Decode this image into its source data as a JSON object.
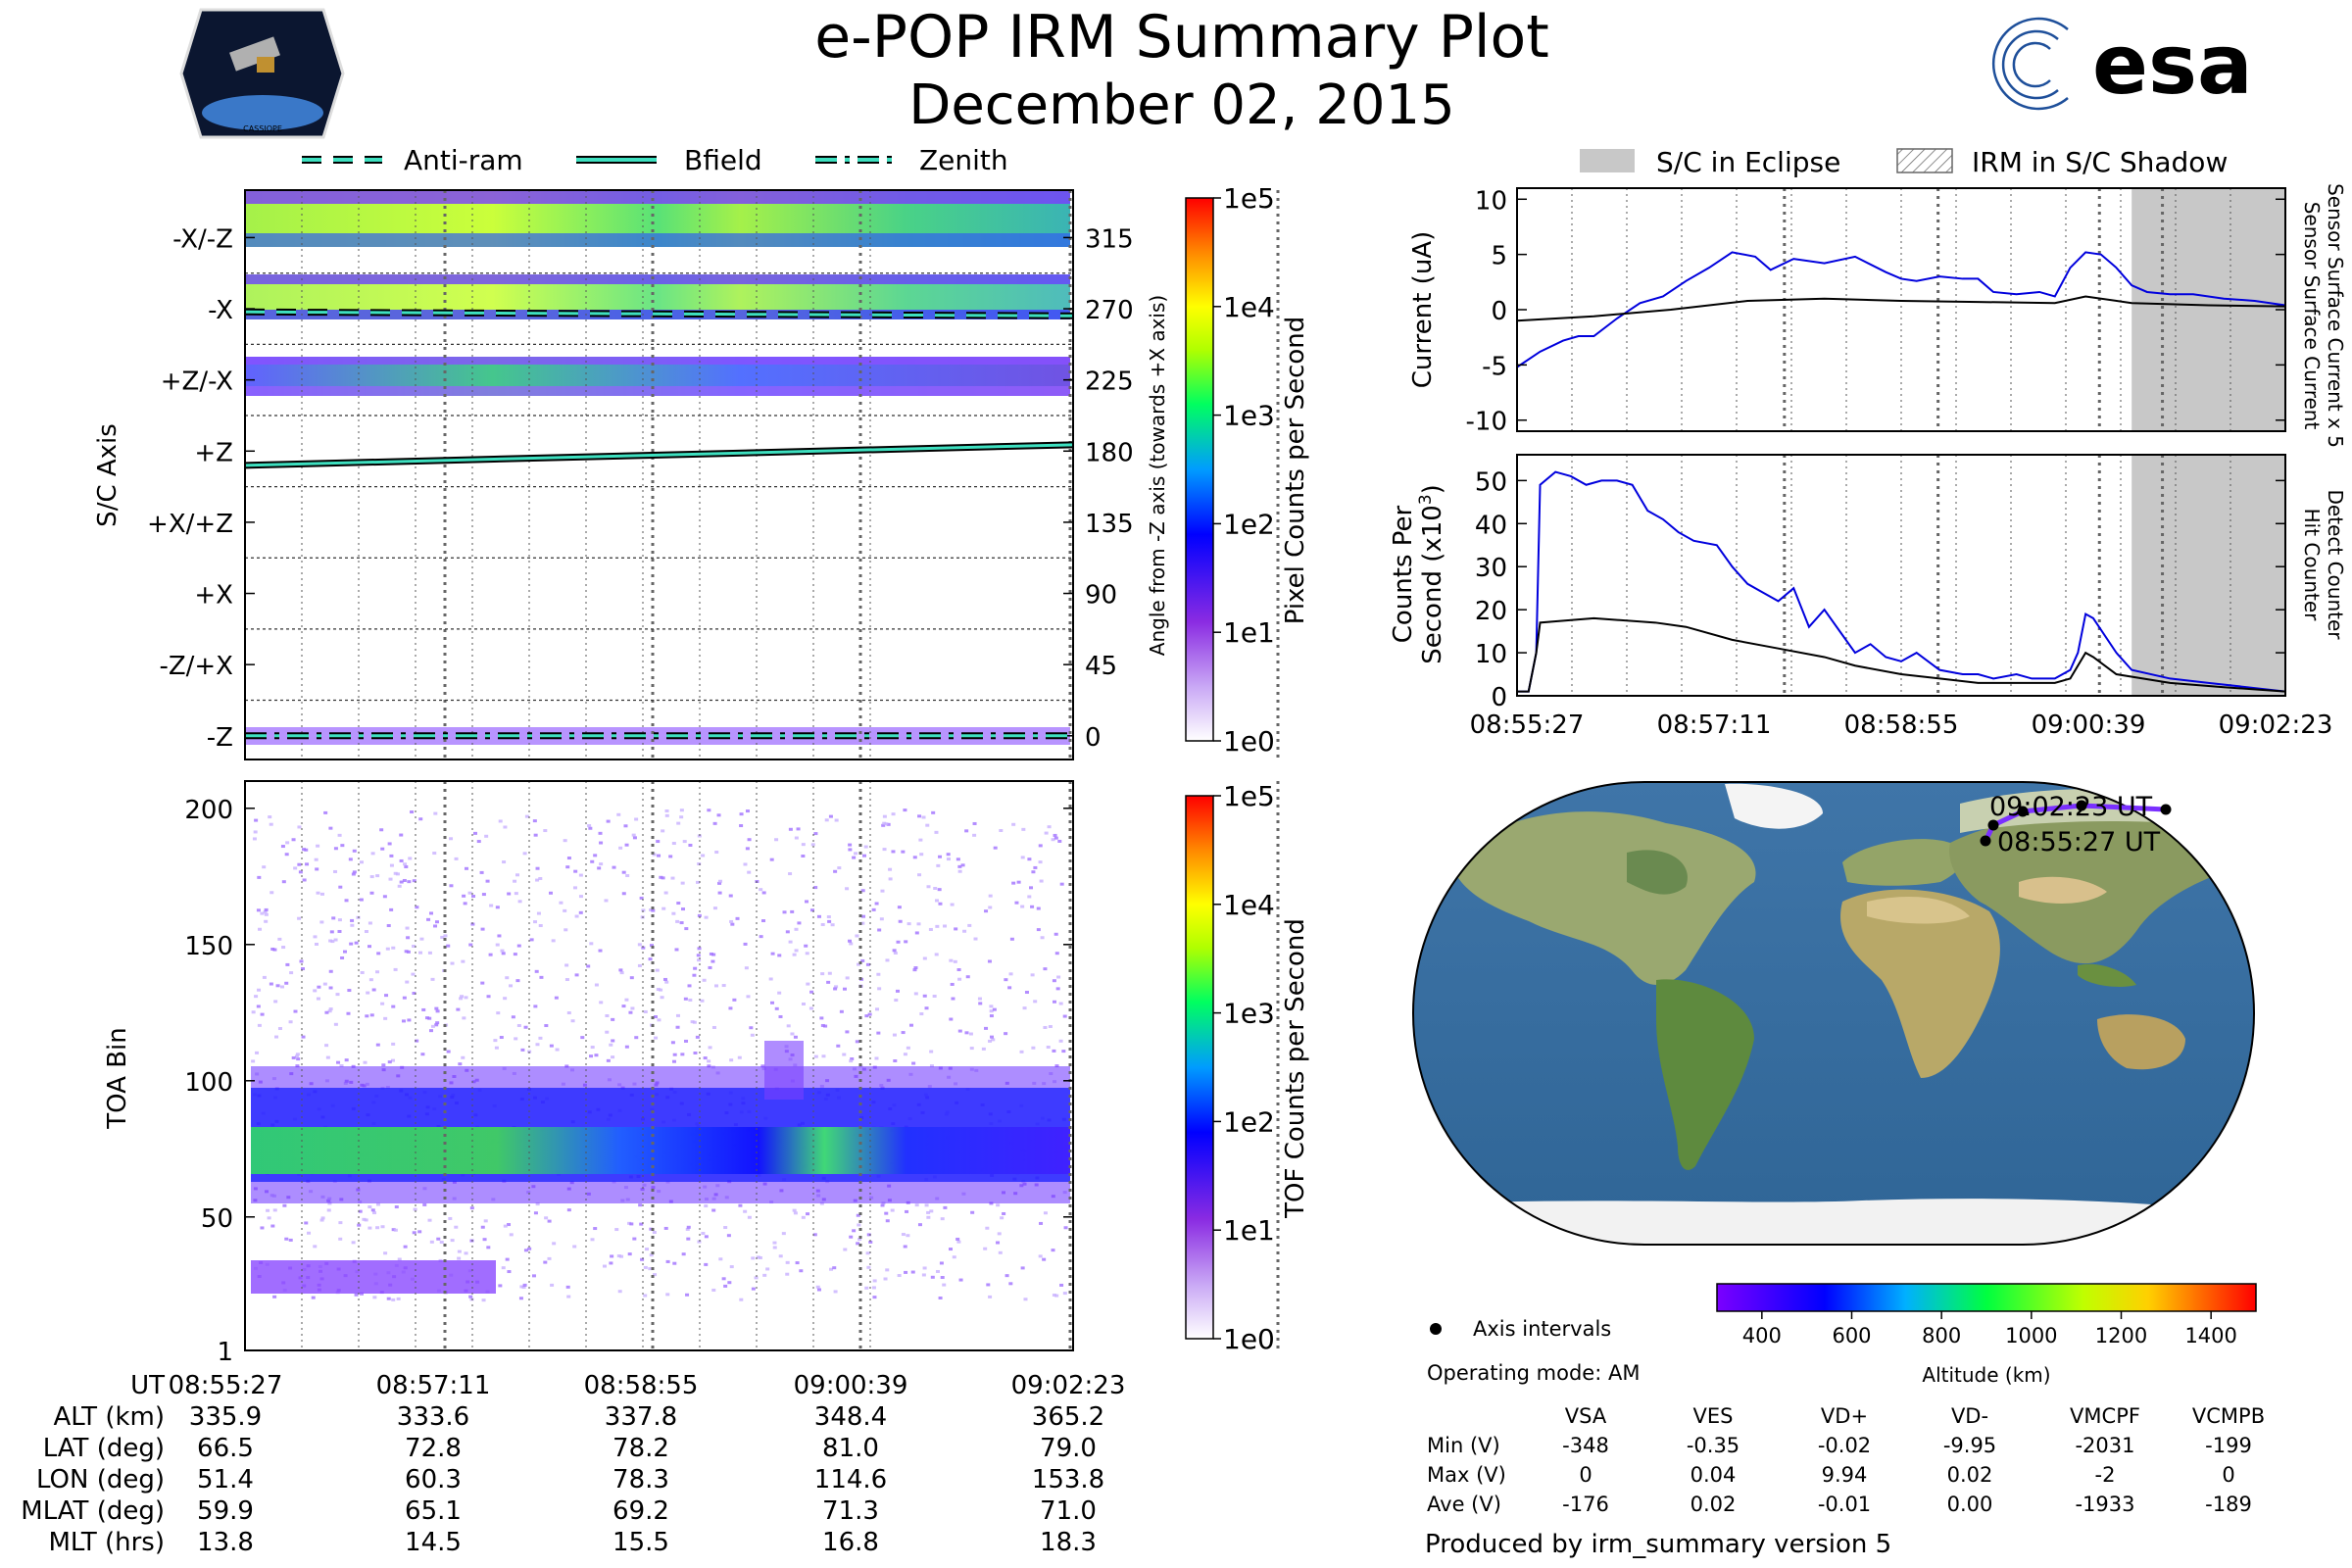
{
  "header": {
    "title": "e-POP IRM Summary Plot",
    "date": "December 02, 2015",
    "mission_logo_text": "CASSIOPE",
    "agency_logo_text": "esa"
  },
  "colors": {
    "eclipse_gray": "#c8c8c8",
    "line_teal": "#3ee0c0",
    "sensor_blue": "#0000dd",
    "hit_black": "#000000"
  },
  "chart_data": [
    {
      "id": "scaxis",
      "type": "heatmap",
      "ylabel": "S/C Axis",
      "y2label": "Angle from -Z axis (towards +X axis)",
      "ylim": [
        -15,
        345
      ],
      "angle_ticks": [
        0,
        45,
        90,
        135,
        180,
        225,
        270,
        315
      ],
      "axis_labels": [
        "-Z",
        "-Z/+X",
        "+X",
        "+X/+Z",
        "+Z",
        "+Z/-X",
        "-X",
        "-X/-Z"
      ],
      "x_ticks": [
        "08:55:27",
        "08:57:11",
        "08:58:55",
        "09:00:39",
        "09:02:23"
      ],
      "legend": [
        "Anti-ram",
        "Bfield",
        "Zenith"
      ],
      "bands": [
        {
          "name": "-X/-Z",
          "angle_range": [
            300,
            345
          ]
        },
        {
          "name": "-X",
          "angle_range": [
            255,
            288
          ]
        },
        {
          "name": "+Z/-X",
          "angle_range": [
            212,
            240
          ]
        },
        {
          "name": "-Z",
          "angle_range": [
            -15,
            -2
          ]
        }
      ],
      "bfield_angle": {
        "start": 171,
        "end": 184
      },
      "antiram_angle": 268,
      "zenith_angle": 0,
      "colorbar": {
        "label": "Pixel Counts per Second",
        "ticks": [
          "1e0",
          "1e1",
          "1e2",
          "1e3",
          "1e4",
          "1e5"
        ]
      }
    },
    {
      "id": "toa",
      "type": "heatmap",
      "ylabel": "TOA Bin",
      "ylim": [
        1,
        210
      ],
      "yticks": [
        1,
        50,
        100,
        150,
        200
      ],
      "x_ticks": [
        "08:55:27",
        "08:57:11",
        "08:58:55",
        "09:00:39",
        "09:02:23"
      ],
      "colorbar": {
        "label": "TOF Counts per Second",
        "ticks": [
          "1e0",
          "1e1",
          "1e2",
          "1e3",
          "1e4",
          "1e5"
        ]
      }
    },
    {
      "id": "current",
      "type": "line",
      "ylabel": "Current (uA)",
      "ylim": [
        -11,
        11
      ],
      "yticks": [
        -10,
        -5,
        0,
        5,
        10
      ],
      "legend": [
        "S/C in Eclipse",
        "IRM in S/C Shadow"
      ],
      "series": [
        {
          "name": "Sensor Surface Current x 5",
          "color": "#0000dd",
          "x": [
            0,
            0.03,
            0.06,
            0.08,
            0.1,
            0.13,
            0.16,
            0.19,
            0.22,
            0.25,
            0.28,
            0.31,
            0.33,
            0.36,
            0.4,
            0.44,
            0.48,
            0.5,
            0.52,
            0.55,
            0.58,
            0.6,
            0.62,
            0.65,
            0.68,
            0.7,
            0.72,
            0.74,
            0.76,
            0.78,
            0.8,
            0.82,
            0.85,
            0.88,
            0.92,
            0.96,
            1.0
          ],
          "values": [
            -5.2,
            -3.8,
            -2.8,
            -2.4,
            -2.4,
            -0.8,
            0.6,
            1.2,
            2.6,
            3.8,
            5.2,
            4.8,
            3.6,
            4.6,
            4.2,
            4.8,
            3.4,
            2.8,
            2.6,
            3.0,
            2.8,
            2.8,
            1.6,
            1.4,
            1.6,
            1.2,
            3.8,
            5.2,
            5.0,
            3.8,
            2.2,
            1.6,
            1.4,
            1.4,
            1.0,
            0.8,
            0.4
          ]
        },
        {
          "name": "Sensor Surface Current",
          "color": "#000000",
          "x": [
            0,
            0.1,
            0.2,
            0.3,
            0.4,
            0.5,
            0.6,
            0.7,
            0.74,
            0.8,
            0.9,
            1.0
          ],
          "values": [
            -1.0,
            -0.6,
            0.0,
            0.8,
            1.0,
            0.8,
            0.7,
            0.6,
            1.2,
            0.6,
            0.4,
            0.3
          ]
        }
      ]
    },
    {
      "id": "counts",
      "type": "line",
      "ylabel": "Counts Per Second (x10³)",
      "ylim": [
        0,
        56
      ],
      "yticks": [
        0,
        10,
        20,
        30,
        40,
        50
      ],
      "x_ticks": [
        "08:55:27",
        "08:57:11",
        "08:58:55",
        "09:00:39",
        "09:02:23"
      ],
      "series": [
        {
          "name": "Detect Counter",
          "color": "#0000dd",
          "x": [
            0,
            0.015,
            0.025,
            0.03,
            0.05,
            0.07,
            0.09,
            0.11,
            0.13,
            0.15,
            0.17,
            0.19,
            0.21,
            0.23,
            0.26,
            0.28,
            0.3,
            0.32,
            0.34,
            0.36,
            0.38,
            0.4,
            0.42,
            0.44,
            0.46,
            0.48,
            0.5,
            0.52,
            0.55,
            0.58,
            0.6,
            0.62,
            0.65,
            0.67,
            0.7,
            0.72,
            0.73,
            0.74,
            0.75,
            0.78,
            0.8,
            0.85,
            0.9,
            0.95,
            1.0
          ],
          "values": [
            1,
            1,
            10,
            49,
            52,
            51,
            49,
            50,
            50,
            49,
            43,
            41,
            38,
            36,
            35,
            30,
            26,
            24,
            22,
            25,
            16,
            20,
            15,
            10,
            12,
            9,
            8,
            10,
            6,
            5,
            5,
            4,
            5,
            4,
            4,
            6,
            10,
            19,
            18,
            10,
            6,
            4,
            3,
            2,
            1
          ]
        },
        {
          "name": "Hit Counter",
          "color": "#000000",
          "x": [
            0,
            0.015,
            0.025,
            0.03,
            0.1,
            0.18,
            0.22,
            0.28,
            0.34,
            0.4,
            0.44,
            0.5,
            0.55,
            0.6,
            0.65,
            0.7,
            0.72,
            0.74,
            0.75,
            0.78,
            0.85,
            0.92,
            1.0
          ],
          "values": [
            1,
            1,
            10,
            17,
            18,
            17,
            16,
            13,
            11,
            9,
            7,
            5,
            4,
            3,
            3,
            3,
            4,
            10,
            9,
            5,
            3,
            2,
            1
          ]
        }
      ],
      "shadow_start_fraction": 0.8,
      "eclipse_line_fraction": 0.84
    },
    {
      "id": "map",
      "type": "scatter",
      "annotations": [
        "09:02:23 UT",
        "08:55:27 UT"
      ],
      "legend": [
        "Axis intervals"
      ],
      "track_lat": [
        66.5,
        72.8,
        78.2,
        81.0,
        79.0
      ],
      "track_lon": [
        51.4,
        60.3,
        78.3,
        114.6,
        153.8
      ],
      "colorbar": {
        "label": "Altitude (km)",
        "ticks": [
          400,
          600,
          800,
          1000,
          1200,
          1400
        ],
        "range": [
          300,
          1500
        ]
      }
    }
  ],
  "footer_table": {
    "row_labels": [
      "UT",
      "ALT (km)",
      "LAT (deg)",
      "LON (deg)",
      "MLAT (deg)",
      "MLT (hrs)"
    ],
    "columns": [
      [
        "08:55:27",
        "335.9",
        "66.5",
        "51.4",
        "59.9",
        "13.8"
      ],
      [
        "08:57:11",
        "333.6",
        "72.8",
        "60.3",
        "65.1",
        "14.5"
      ],
      [
        "08:58:55",
        "337.8",
        "78.2",
        "78.3",
        "69.2",
        "15.5"
      ],
      [
        "09:00:39",
        "348.4",
        "81.0",
        "114.6",
        "71.3",
        "16.8"
      ],
      [
        "09:02:23",
        "365.2",
        "79.0",
        "153.8",
        "71.0",
        "18.3"
      ]
    ]
  },
  "voltage_table": {
    "operating_mode": "Operating mode: AM",
    "headers": [
      "VSA",
      "VES",
      "VD+",
      "VD-",
      "VMCPF",
      "VCMPB"
    ],
    "rows": [
      {
        "label": "Min (V)",
        "values": [
          "-348",
          "-0.35",
          "-0.02",
          "-9.95",
          "-2031",
          "-199"
        ]
      },
      {
        "label": "Max (V)",
        "values": [
          "0",
          "0.04",
          "9.94",
          "0.02",
          "-2",
          "0"
        ]
      },
      {
        "label": "Ave (V)",
        "values": [
          "-176",
          "0.02",
          "-0.01",
          "0.00",
          "-1933",
          "-189"
        ]
      }
    ]
  },
  "footer": {
    "produced_by": "Produced by irm_summary version 5"
  }
}
